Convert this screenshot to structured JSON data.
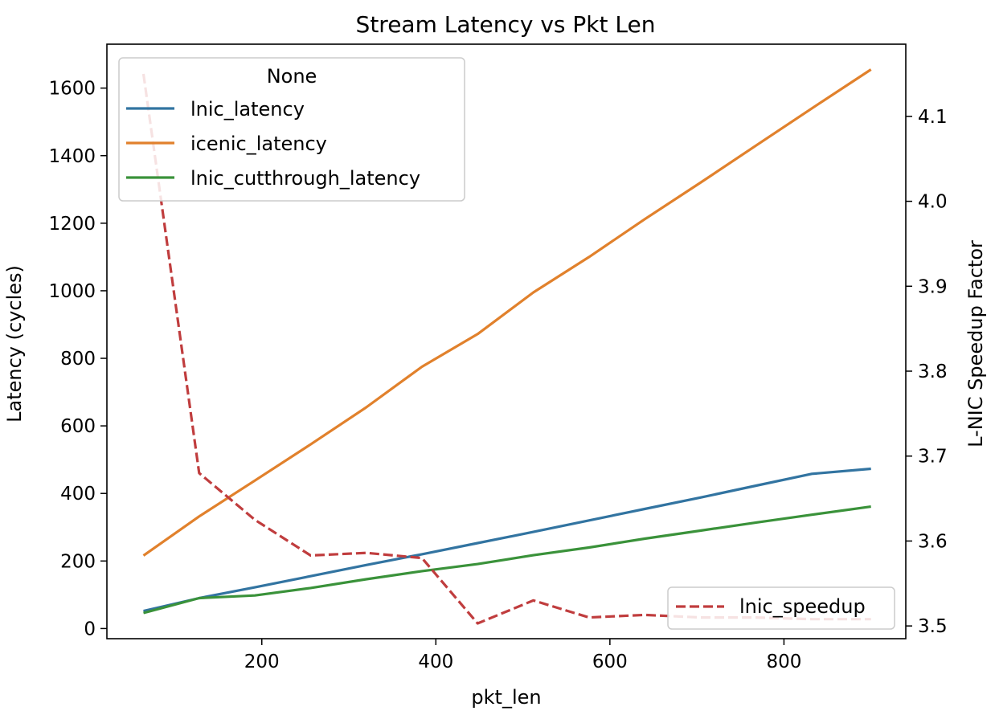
{
  "chart_data": {
    "type": "line",
    "title": "Stream Latency vs Pkt Len",
    "xlabel": "pkt_len",
    "ylabel": "Latency (cycles)",
    "y2label": "L-NIC Speedup Factor",
    "xlim": [
      22,
      940
    ],
    "ylim": [
      -30,
      1730
    ],
    "y2lim": [
      3.485,
      4.185
    ],
    "xticks": [
      200,
      400,
      600,
      800
    ],
    "xtick_labels": [
      "200",
      "400",
      "600",
      "800"
    ],
    "yticks": [
      0,
      200,
      400,
      600,
      800,
      1000,
      1200,
      1400,
      1600
    ],
    "ytick_labels": [
      "0",
      "200",
      "400",
      "600",
      "800",
      "1000",
      "1200",
      "1400",
      "1600"
    ],
    "y2ticks": [
      3.5,
      3.6,
      3.7,
      3.8,
      3.9,
      4.0,
      4.1
    ],
    "y2tick_labels": [
      "3.5",
      "3.6",
      "3.7",
      "3.8",
      "3.9",
      "4.0",
      "4.1"
    ],
    "x": [
      64,
      128,
      192,
      256,
      320,
      384,
      448,
      512,
      576,
      640,
      704,
      768,
      832,
      900
    ],
    "series": [
      {
        "name": "lnic_latency",
        "axis": "left",
        "color": "#3274a1",
        "dash": "solid",
        "values": [
          52,
          90,
          122,
          155,
          188,
          220,
          253,
          286,
          320,
          354,
          388,
          423,
          458,
          473
        ]
      },
      {
        "name": "icenic_latency",
        "axis": "left",
        "color": "#e1812c",
        "dash": "solid",
        "values": [
          216,
          332,
          438,
          545,
          655,
          775,
          872,
          995,
          1100,
          1212,
          1320,
          1430,
          1540,
          1655
        ]
      },
      {
        "name": "lnic_cutthrough_latency",
        "axis": "left",
        "color": "#3a923a",
        "dash": "solid",
        "values": [
          46,
          90,
          98,
          120,
          146,
          170,
          191,
          217,
          240,
          266,
          290,
          314,
          337,
          361
        ]
      },
      {
        "name": "lnic_speedup",
        "axis": "right",
        "color": "#c03d3e",
        "dash": "dashed",
        "values": [
          4.15,
          3.68,
          3.625,
          3.583,
          3.586,
          3.58,
          3.503,
          3.53,
          3.51,
          3.513,
          3.51,
          3.51,
          3.508,
          3.508
        ]
      }
    ],
    "legend_left": {
      "title": "None",
      "placement": "upper left",
      "entries": [
        "lnic_latency",
        "icenic_latency",
        "lnic_cutthrough_latency"
      ]
    },
    "legend_right": {
      "placement": "lower right",
      "entries": [
        "lnic_speedup"
      ]
    },
    "grid": false
  }
}
